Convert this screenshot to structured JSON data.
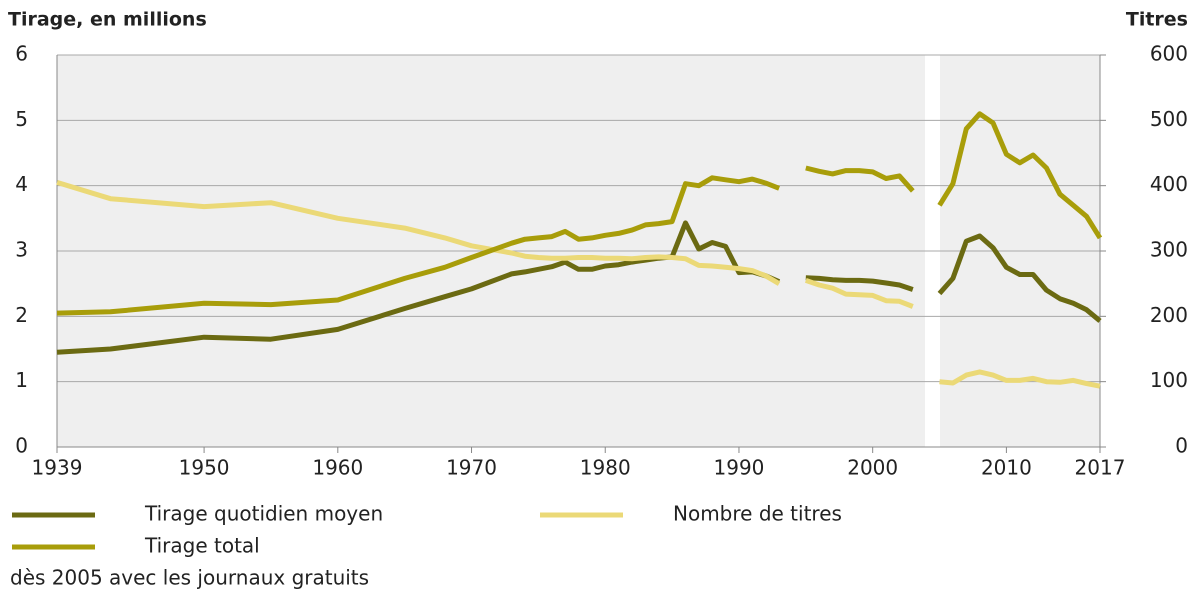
{
  "chart_data": {
    "type": "line",
    "y_label": "Tirage, en millions",
    "y2_label": "Titres",
    "note": "dès 2005 avec les journaux gratuits",
    "x": [
      1939,
      1943,
      1950,
      1955,
      1960,
      1965,
      1968,
      1970,
      1973,
      1974,
      1975,
      1976,
      1977,
      1978,
      1979,
      1980,
      1981,
      1982,
      1983,
      1984,
      1985,
      1986,
      1987,
      1988,
      1989,
      1990,
      1991,
      1992,
      1993,
      1994,
      1995,
      1996,
      1997,
      1998,
      1999,
      2000,
      2001,
      2002,
      2003,
      2004,
      2005,
      2006,
      2007,
      2008,
      2009,
      2010,
      2011,
      2012,
      2013,
      2014,
      2015,
      2016,
      2017
    ],
    "series": [
      {
        "name": "Tirage quotidien moyen",
        "color": "#6b6a12",
        "values": [
          1.45,
          1.5,
          1.68,
          1.65,
          1.8,
          2.12,
          2.3,
          2.42,
          2.65,
          2.68,
          2.72,
          2.76,
          2.83,
          2.72,
          2.72,
          2.77,
          2.79,
          2.83,
          2.86,
          2.89,
          2.91,
          3.43,
          3.03,
          3.13,
          3.07,
          2.67,
          2.68,
          2.62,
          2.53,
          null,
          2.59,
          2.58,
          2.56,
          2.55,
          2.55,
          2.54,
          2.51,
          2.48,
          2.41,
          null,
          2.35,
          2.58,
          3.15,
          3.23,
          3.05,
          2.75,
          2.64,
          2.64,
          2.4,
          2.27,
          2.2,
          2.1,
          1.93
        ]
      },
      {
        "name": "Nombre de titres",
        "color": "#ebd977",
        "axis": "y2",
        "values": [
          405,
          380,
          368,
          374,
          350,
          335,
          320,
          308,
          297,
          292,
          290,
          289,
          289,
          290,
          290,
          289,
          289,
          288,
          290,
          291,
          290,
          288,
          278,
          277,
          275,
          273,
          270,
          262,
          250,
          null,
          255,
          248,
          243,
          234,
          233,
          232,
          224,
          223,
          215,
          null,
          100,
          98,
          110,
          115,
          110,
          102,
          102,
          105,
          100,
          99,
          102,
          97,
          93
        ]
      },
      {
        "name": "Tirage total",
        "color": "#a89d0a",
        "values": [
          2.05,
          2.07,
          2.2,
          2.18,
          2.25,
          2.58,
          2.75,
          2.9,
          3.12,
          3.18,
          3.2,
          3.22,
          3.3,
          3.18,
          3.2,
          3.24,
          3.27,
          3.32,
          3.4,
          3.42,
          3.45,
          4.03,
          4.0,
          4.12,
          4.09,
          4.06,
          4.1,
          4.04,
          3.96,
          null,
          4.27,
          4.22,
          4.18,
          4.23,
          4.23,
          4.21,
          4.11,
          4.15,
          3.92,
          null,
          3.7,
          4.03,
          4.87,
          5.1,
          4.96,
          4.48,
          4.35,
          4.47,
          4.27,
          3.87,
          3.7,
          3.53,
          3.2
        ]
      }
    ],
    "xlim": [
      1939,
      2017
    ],
    "xticks": [
      1939,
      1950,
      1960,
      1970,
      1980,
      1990,
      2000,
      2010,
      2017
    ],
    "ylim": [
      0,
      6
    ],
    "yticks": [
      0,
      1,
      2,
      3,
      4,
      5,
      6
    ],
    "y2lim": [
      0,
      600
    ],
    "y2ticks": [
      0,
      100,
      200,
      300,
      400,
      500,
      600
    ],
    "grid": true
  }
}
